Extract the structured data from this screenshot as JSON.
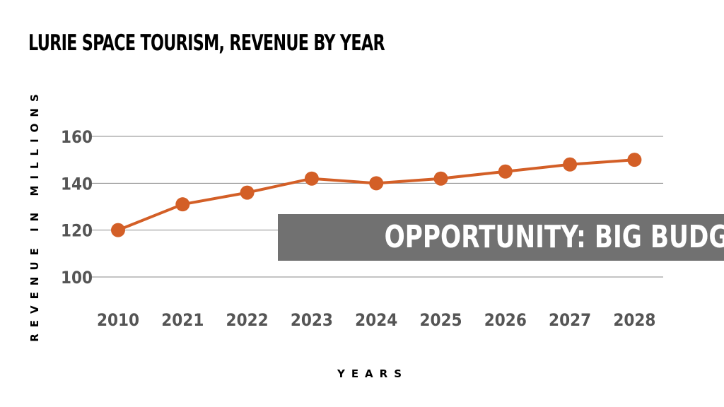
{
  "title": "LURIE SPACE TOURISM, REVENUE BY YEAR",
  "banner": {
    "text": "OPPORTUNITY: BIG BUDGET"
  },
  "chart_data": {
    "type": "line",
    "title": "LURIE SPACE TOURISM, REVENUE BY YEAR",
    "xlabel": "YEARS",
    "ylabel": "REVENUE IN MILLIONS",
    "categories": [
      "2010",
      "2021",
      "2022",
      "2023",
      "2024",
      "2025",
      "2026",
      "2027",
      "2028"
    ],
    "series": [
      {
        "values": [
          120,
          131,
          136,
          142,
          140,
          142,
          145,
          148,
          150
        ]
      }
    ],
    "yticks": [
      100,
      120,
      140,
      160
    ],
    "ylim": [
      100,
      160
    ],
    "grid": true,
    "legend": "none",
    "colors": {
      "line": "#d35f27",
      "grid": "#8a8a8a",
      "tick_text": "#555555",
      "banner_bg": "#717171"
    }
  }
}
